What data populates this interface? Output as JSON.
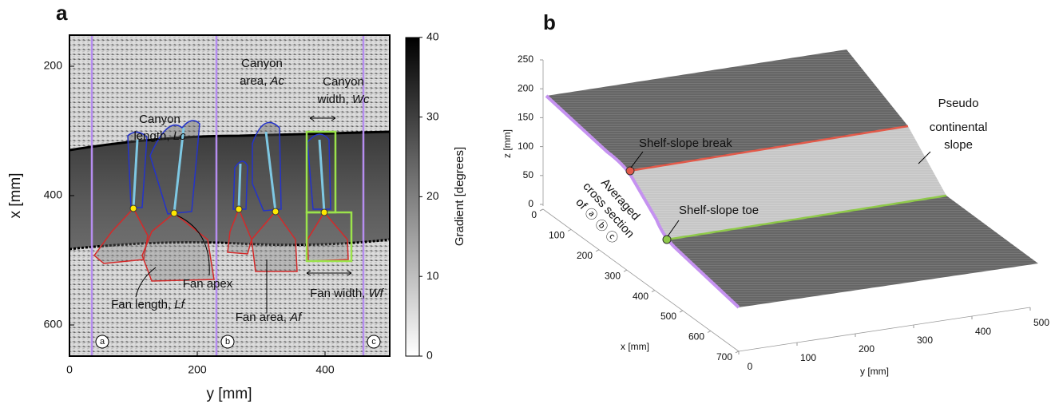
{
  "panel_a": {
    "label": "a",
    "x_axis_label": "y [mm]",
    "y_axis_label": "x [mm]",
    "xticks": [
      0,
      200,
      400
    ],
    "yticks": [
      200,
      400,
      600
    ],
    "colorbar": {
      "label": "Gradient [degrees]",
      "ticks": [
        0,
        10,
        20,
        30,
        40
      ]
    },
    "annotations": {
      "canyon_length": {
        "lines": [
          "Canyon",
          "length, "
        ],
        "symbol": "Lc"
      },
      "canyon_area": {
        "lines": [
          "Canyon",
          "area, "
        ],
        "symbol": "Ac"
      },
      "canyon_width": {
        "lines": [
          "Canyon",
          "width, "
        ],
        "symbol": "Wc"
      },
      "fan_apex": "Fan apex",
      "fan_length": {
        "text": "Fan length, ",
        "symbol": "Lf"
      },
      "fan_area": {
        "text": "Fan area, ",
        "symbol": "Af"
      },
      "fan_width": {
        "text": "Fan width, ",
        "symbol": "Wf"
      }
    },
    "section_markers": [
      "a",
      "b",
      "c"
    ]
  },
  "panel_b": {
    "label": "b",
    "z_axis_label": "z [mm]",
    "x_axis_label": "x [mm]",
    "y_axis_label": "y [mm]",
    "zticks": [
      0,
      50,
      100,
      150,
      200,
      250
    ],
    "xticks": [
      0,
      100,
      200,
      300,
      400,
      500,
      600,
      700
    ],
    "yticks": [
      0,
      100,
      200,
      300,
      400,
      500
    ],
    "annotations": {
      "shelf_break": "Shelf-slope break",
      "shelf_toe": "Shelf-slope toe",
      "pseudo_slope": [
        "Pseudo",
        "continental",
        "slope"
      ],
      "averaged_section": [
        "Averaged",
        "cross section",
        "of ⓐ ⓑ ⓒ"
      ]
    }
  }
}
